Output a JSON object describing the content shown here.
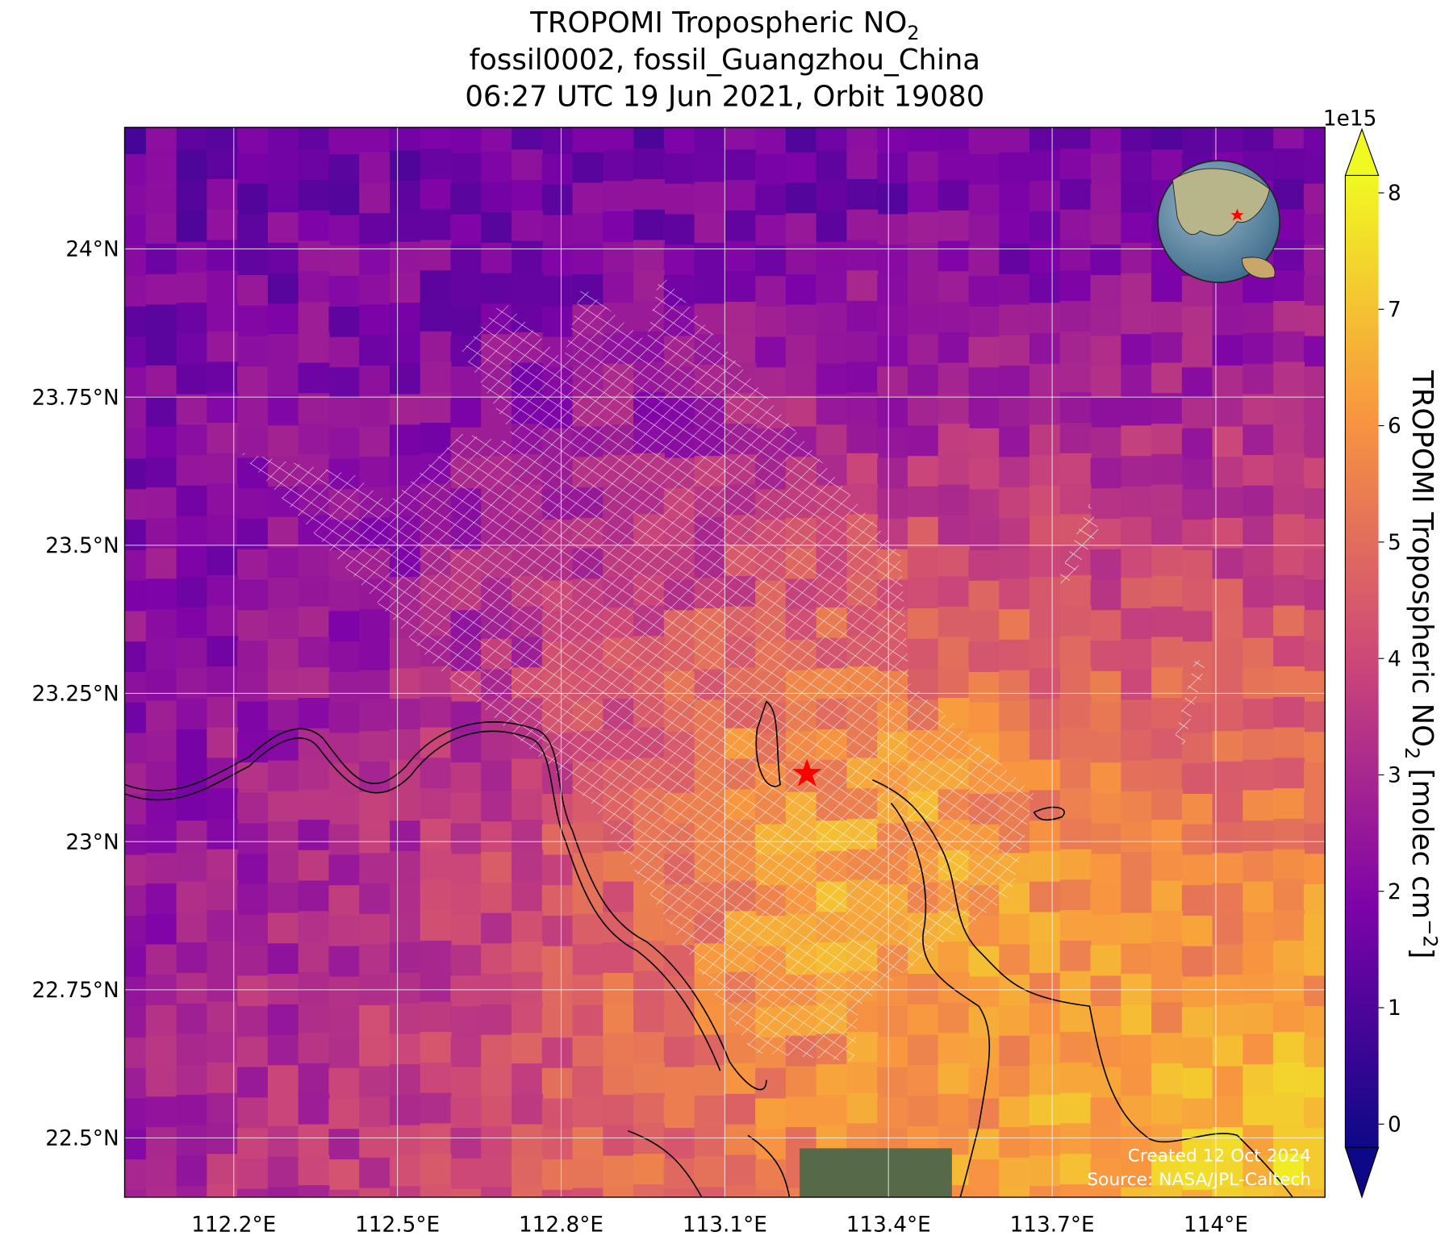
{
  "chart_data": {
    "type": "map",
    "title_lines": [
      {
        "text": "TROPOMI Tropospheric NO",
        "sub": "2"
      },
      {
        "text": "fossil0002, fossil_Guangzhou_China"
      },
      {
        "text": "06:27 UTC 19 Jun 2021, Orbit 19080"
      }
    ],
    "xlim": [
      112.0,
      114.2
    ],
    "ylim": [
      22.4,
      24.205
    ],
    "xticks": [
      {
        "value": 112.2,
        "label": "112.2°E"
      },
      {
        "value": 112.5,
        "label": "112.5°E"
      },
      {
        "value": 112.8,
        "label": "112.8°E"
      },
      {
        "value": 113.1,
        "label": "113.1°E"
      },
      {
        "value": 113.4,
        "label": "113.4°E"
      },
      {
        "value": 113.7,
        "label": "113.7°E"
      },
      {
        "value": 114.0,
        "label": "114°E"
      }
    ],
    "yticks": [
      {
        "value": 24.0,
        "label": "24°N"
      },
      {
        "value": 23.75,
        "label": "23.75°N"
      },
      {
        "value": 23.5,
        "label": "23.5°N"
      },
      {
        "value": 23.25,
        "label": "23.25°N"
      },
      {
        "value": 23.0,
        "label": "23°N"
      },
      {
        "value": 22.75,
        "label": "22.75°N"
      },
      {
        "value": 22.5,
        "label": "22.5°N"
      }
    ],
    "grid": true,
    "colorbar": {
      "label": {
        "text": "TROPOMI Tropospheric NO",
        "sub": "2",
        "unit": " [molec cm",
        "sup": "−2",
        "end": "]"
      },
      "exponent": "1e15",
      "lim": [
        -0.2,
        8.15
      ],
      "ticks": [
        0,
        1,
        2,
        3,
        4,
        5,
        6,
        7,
        8
      ],
      "colormap": [
        "#0d0887",
        "#7e03a8",
        "#cc4778",
        "#f89540",
        "#f0f921"
      ]
    },
    "credits": [
      "Created 12 Oct 2024",
      "Source: NASA/JPL-Caltech"
    ]
  }
}
